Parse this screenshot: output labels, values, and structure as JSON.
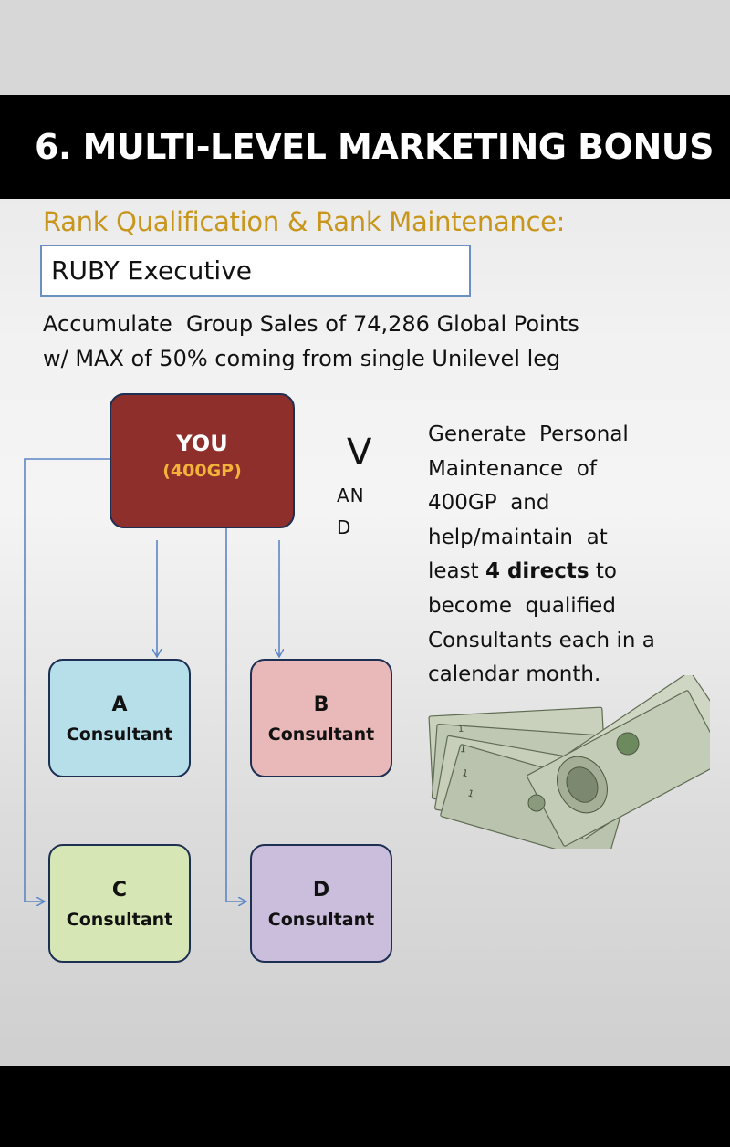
{
  "title": "6. MULTI-LEVEL MARKETING BONUS",
  "subtitle": "Rank Qualification & Rank Maintenance:",
  "rank": "RUBY Executive",
  "description": {
    "line1": "Accumulate  Group Sales of 74,286 Global Points",
    "line2": "w/ MAX of 50% coming from single Unilevel leg"
  },
  "diagram": {
    "you": {
      "label": "YOU",
      "points": "(400GP)"
    },
    "nodes": [
      {
        "letter": "A",
        "role": "Consultant",
        "color": "#b6dfea"
      },
      {
        "letter": "B",
        "role": "Consultant",
        "color": "#e9b9b9"
      },
      {
        "letter": "C",
        "role": "Consultant",
        "color": "#d7e6b5"
      },
      {
        "letter": "D",
        "role": "Consultant",
        "color": "#cbbddc"
      }
    ]
  },
  "and_text": {
    "v": "V",
    "an": "AN",
    "d": "D"
  },
  "side_text": {
    "line1": "Generate  Personal",
    "line2": "Maintenance  of",
    "line3": "400GP  and",
    "line4": "help/maintain  at",
    "line5_pre": "least ",
    "line5_bold": "4 directs",
    "line5_post": " to",
    "line6": "become  qualified",
    "line7": "Consultants each in a",
    "line8": "calendar month."
  },
  "colors": {
    "accent": "#c8961c",
    "you_box": "#8e2f2b",
    "you_points": "#f3b23a",
    "arrow": "#5b86c4"
  },
  "image": {
    "icon": "money-stack-icon"
  }
}
